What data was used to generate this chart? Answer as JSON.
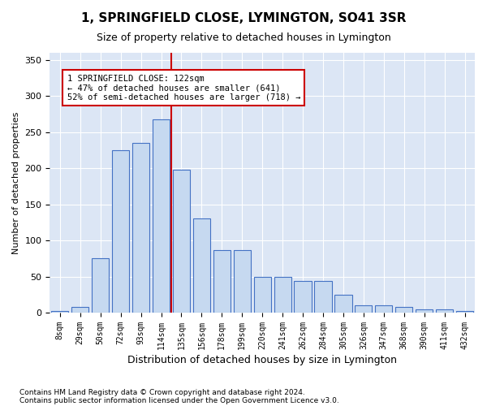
{
  "title": "1, SPRINGFIELD CLOSE, LYMINGTON, SO41 3SR",
  "subtitle": "Size of property relative to detached houses in Lymington",
  "xlabel": "Distribution of detached houses by size in Lymington",
  "ylabel": "Number of detached properties",
  "footnote1": "Contains HM Land Registry data © Crown copyright and database right 2024.",
  "footnote2": "Contains public sector information licensed under the Open Government Licence v3.0.",
  "annotation_title": "1 SPRINGFIELD CLOSE: 122sqm",
  "annotation_line1": "← 47% of detached houses are smaller (641)",
  "annotation_line2": "52% of semi-detached houses are larger (718) →",
  "bar_categories": [
    "8sqm",
    "29sqm",
    "50sqm",
    "72sqm",
    "93sqm",
    "114sqm",
    "135sqm",
    "156sqm",
    "178sqm",
    "199sqm",
    "220sqm",
    "241sqm",
    "262sqm",
    "284sqm",
    "305sqm",
    "326sqm",
    "347sqm",
    "368sqm",
    "390sqm",
    "411sqm",
    "432sqm"
  ],
  "bar_heights": [
    2,
    8,
    75,
    225,
    235,
    268,
    198,
    130,
    87,
    87,
    50,
    50,
    44,
    44,
    25,
    10,
    10,
    8,
    5,
    5,
    2
  ],
  "bar_color": "#c6d9f0",
  "bar_edge_color": "#4472c4",
  "vline_x": 5.5,
  "vline_color": "#cc0000",
  "annotation_box_color": "#cc0000",
  "background_color": "#dce6f5",
  "ylim": [
    0,
    360
  ],
  "yticks": [
    0,
    50,
    100,
    150,
    200,
    250,
    300,
    350
  ]
}
